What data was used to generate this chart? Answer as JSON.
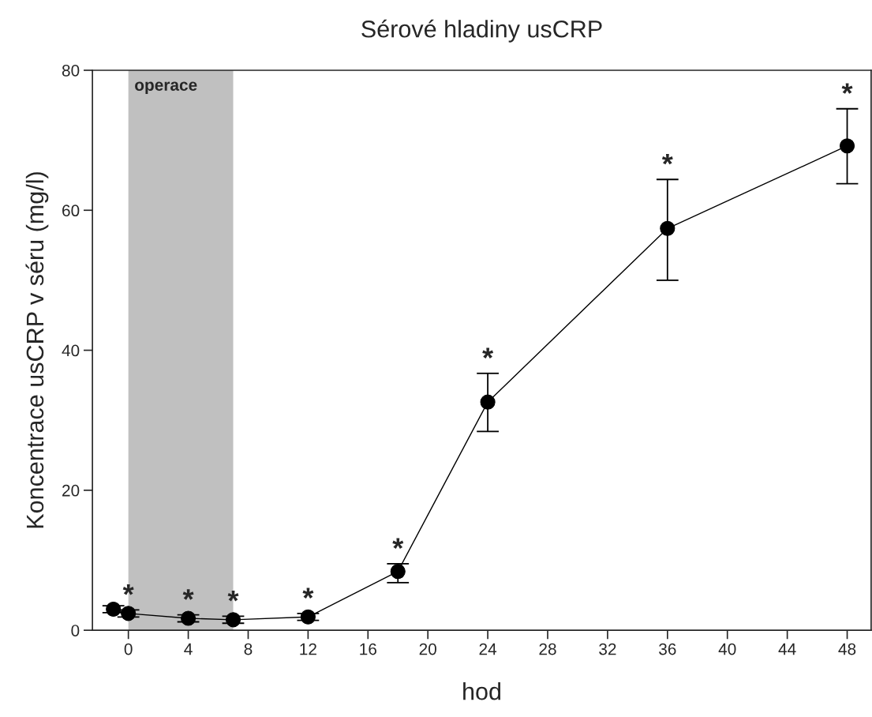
{
  "chart_data": {
    "type": "line",
    "title": "Sérové hladiny usCRP",
    "xlabel": "hod",
    "ylabel": "Koncentrace usCRP v séru (mg/l)",
    "x": [
      -1,
      0,
      4,
      7,
      12,
      18,
      24,
      36,
      48
    ],
    "series": [
      {
        "color": "#000000",
        "values": [
          3.0,
          2.4,
          1.7,
          1.5,
          1.9,
          8.4,
          32.6,
          57.4,
          69.2
        ],
        "errors": [
          0.5,
          0.5,
          0.5,
          0.5,
          0.5,
          [
            6.8,
            9.5
          ],
          [
            28.4,
            36.7
          ],
          [
            50.0,
            64.4
          ],
          [
            63.8,
            74.5
          ]
        ]
      }
    ],
    "marker": "circle",
    "line_style": "solid",
    "grid": false,
    "legend": false,
    "xlim": [
      -2.4,
      49.6
    ],
    "xticks": [
      0,
      4,
      8,
      12,
      16,
      20,
      24,
      28,
      32,
      36,
      40,
      44,
      48
    ],
    "ylim": [
      0,
      80
    ],
    "yticks": [
      0,
      20,
      40,
      60,
      80
    ],
    "bands": [
      {
        "axis": "x",
        "from": 0,
        "to": 7,
        "label": "operace",
        "color": "#c0c0c0"
      }
    ],
    "annotations": [
      {
        "text": "*",
        "x": 0,
        "y": 2.4
      },
      {
        "text": "*",
        "x": 4,
        "y": 1.7
      },
      {
        "text": "*",
        "x": 7,
        "y": 1.5
      },
      {
        "text": "*",
        "x": 12,
        "y": 1.9
      },
      {
        "text": "*",
        "x": 18,
        "y": 8.4
      },
      {
        "text": "*",
        "x": 24,
        "y": 32.6
      },
      {
        "text": "*",
        "x": 36,
        "y": 57.4
      },
      {
        "text": "*",
        "x": 48,
        "y": 69.2
      }
    ]
  }
}
